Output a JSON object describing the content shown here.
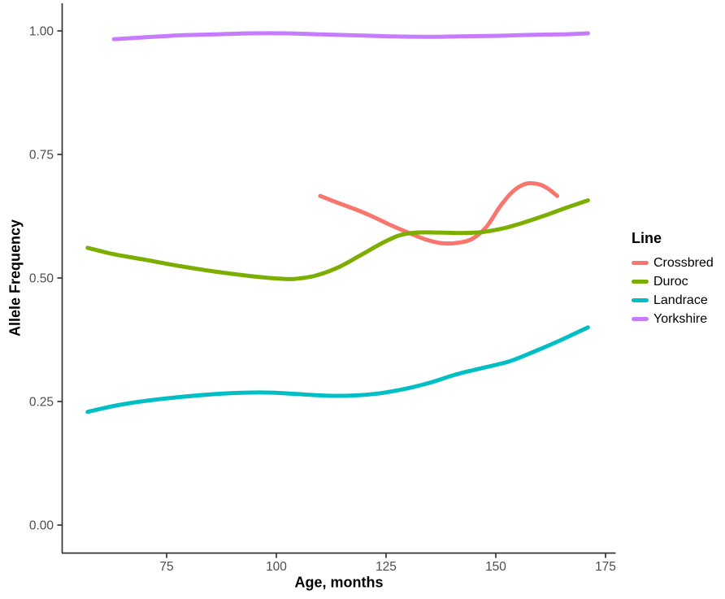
{
  "chart_data": {
    "type": "line",
    "title": "",
    "xlabel": "Age, months",
    "ylabel": "Allele Frequency",
    "legend_title": "Line",
    "legend_position": "right",
    "grid": false,
    "xlim": [
      51,
      177
    ],
    "ylim": [
      -0.06,
      1.05
    ],
    "x_ticks": [
      {
        "value": 75,
        "label": "75"
      },
      {
        "value": 100,
        "label": "100"
      },
      {
        "value": 125,
        "label": "125"
      },
      {
        "value": 150,
        "label": "150"
      },
      {
        "value": 175,
        "label": "175"
      }
    ],
    "y_ticks": [
      {
        "value": 0.0,
        "label": "0.00"
      },
      {
        "value": 0.25,
        "label": "0.25"
      },
      {
        "value": 0.5,
        "label": "0.50"
      },
      {
        "value": 0.75,
        "label": "0.75"
      },
      {
        "value": 1.0,
        "label": "1.00"
      }
    ],
    "axis_color": "#333333",
    "tick_text_color": "#4d4d4d",
    "series": [
      {
        "name": "Crossbred",
        "color": "#F8766D",
        "points": [
          [
            110,
            0.666
          ],
          [
            114,
            0.652
          ],
          [
            118,
            0.639
          ],
          [
            122,
            0.624
          ],
          [
            126,
            0.607
          ],
          [
            130,
            0.592
          ],
          [
            134,
            0.578
          ],
          [
            138,
            0.57
          ],
          [
            142,
            0.572
          ],
          [
            145,
            0.581
          ],
          [
            148,
            0.605
          ],
          [
            151,
            0.645
          ],
          [
            154,
            0.676
          ],
          [
            157,
            0.691
          ],
          [
            160,
            0.689
          ],
          [
            162,
            0.68
          ],
          [
            164,
            0.666
          ]
        ]
      },
      {
        "name": "Duroc",
        "color": "#7CAE00",
        "points": [
          [
            57,
            0.561
          ],
          [
            63,
            0.548
          ],
          [
            70,
            0.537
          ],
          [
            78,
            0.524
          ],
          [
            86,
            0.513
          ],
          [
            94,
            0.504
          ],
          [
            100,
            0.499
          ],
          [
            104,
            0.498
          ],
          [
            109,
            0.505
          ],
          [
            114,
            0.521
          ],
          [
            119,
            0.545
          ],
          [
            124,
            0.57
          ],
          [
            128,
            0.586
          ],
          [
            132,
            0.592
          ],
          [
            137,
            0.592
          ],
          [
            142,
            0.591
          ],
          [
            147,
            0.593
          ],
          [
            152,
            0.601
          ],
          [
            157,
            0.614
          ],
          [
            162,
            0.629
          ],
          [
            166,
            0.642
          ],
          [
            171,
            0.657
          ]
        ]
      },
      {
        "name": "Landrace",
        "color": "#00BFC4",
        "points": [
          [
            57,
            0.229
          ],
          [
            63,
            0.241
          ],
          [
            70,
            0.251
          ],
          [
            78,
            0.259
          ],
          [
            86,
            0.265
          ],
          [
            93,
            0.268
          ],
          [
            99,
            0.268
          ],
          [
            105,
            0.265
          ],
          [
            111,
            0.262
          ],
          [
            117,
            0.262
          ],
          [
            123,
            0.266
          ],
          [
            129,
            0.275
          ],
          [
            135,
            0.288
          ],
          [
            141,
            0.305
          ],
          [
            147,
            0.318
          ],
          [
            153,
            0.331
          ],
          [
            159,
            0.352
          ],
          [
            165,
            0.375
          ],
          [
            171,
            0.4
          ]
        ]
      },
      {
        "name": "Yorkshire",
        "color": "#C77CFF",
        "points": [
          [
            63,
            0.983
          ],
          [
            70,
            0.987
          ],
          [
            78,
            0.991
          ],
          [
            86,
            0.993
          ],
          [
            94,
            0.995
          ],
          [
            102,
            0.995
          ],
          [
            110,
            0.993
          ],
          [
            118,
            0.991
          ],
          [
            126,
            0.989
          ],
          [
            134,
            0.988
          ],
          [
            142,
            0.989
          ],
          [
            150,
            0.99
          ],
          [
            158,
            0.992
          ],
          [
            165,
            0.993
          ],
          [
            171,
            0.995
          ]
        ]
      }
    ]
  }
}
